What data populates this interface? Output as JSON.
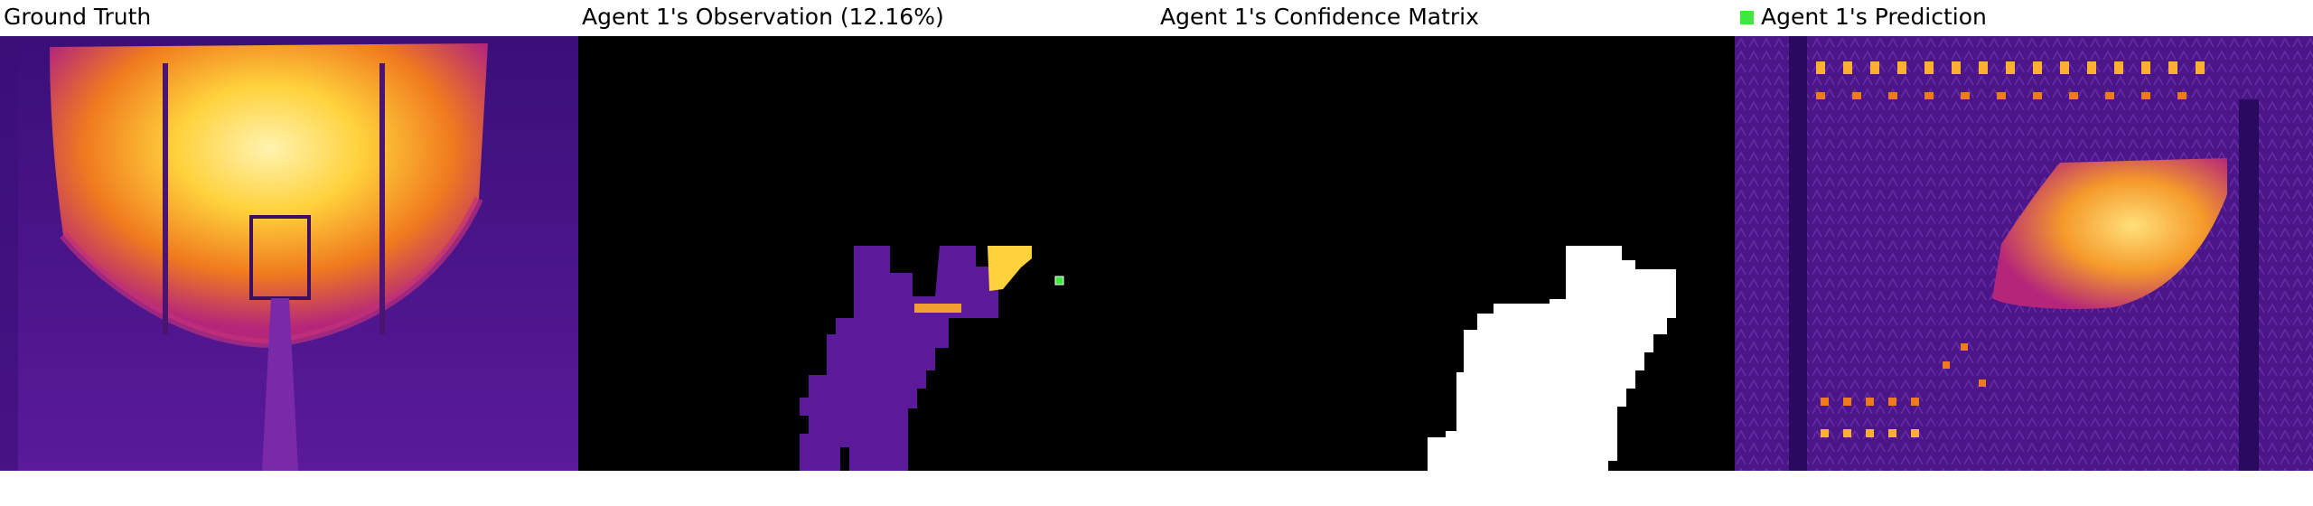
{
  "panels": [
    {
      "id": "ground-truth",
      "title": "Ground Truth"
    },
    {
      "id": "observation",
      "title": "Agent 1's Observation (12.16%)"
    },
    {
      "id": "confidence",
      "title": "Agent 1's Confidence Matrix"
    },
    {
      "id": "prediction",
      "title": "Agent 1's Prediction"
    }
  ],
  "colors": {
    "background": "#ffffff",
    "agent_marker": "#3ee83e",
    "hot": "#ffd23c",
    "warm": "#f07a1e",
    "cool": "#5a1a9a",
    "cold": "#2a0a5e"
  },
  "legend": {
    "icon": "green-square-icon"
  }
}
